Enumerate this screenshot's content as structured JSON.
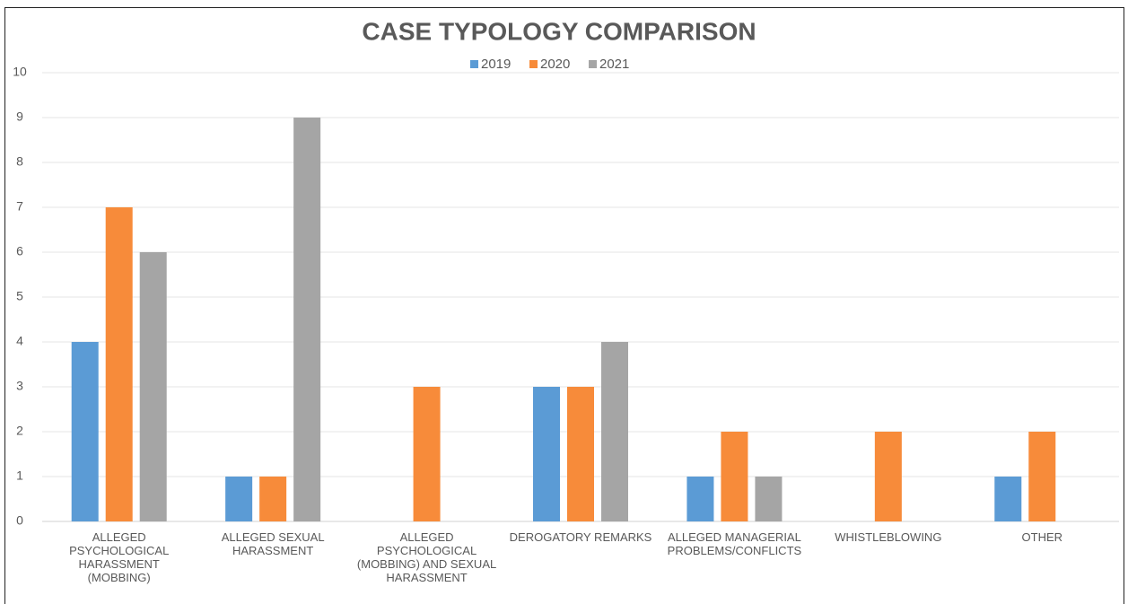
{
  "chart_data": {
    "type": "bar",
    "title": "CASE TYPOLOGY COMPARISON",
    "categories": [
      "ALLEGED PSYCHOLOGICAL HARASSMENT (MOBBING)",
      "ALLEGED SEXUAL HARASSMENT",
      "ALLEGED PSYCHOLOGICAL (MOBBING) AND SEXUAL HARASSMENT",
      "DEROGATORY REMARKS",
      "ALLEGED MANAGERIAL PROBLEMS/CONFLICTS",
      "WHISTLEBLOWING",
      "OTHER"
    ],
    "series": [
      {
        "name": "2019",
        "color": "#5b9bd5",
        "values": [
          4,
          1,
          0,
          3,
          1,
          0,
          1
        ]
      },
      {
        "name": "2020",
        "color": "#f78b3a",
        "values": [
          7,
          1,
          3,
          3,
          2,
          2,
          2
        ]
      },
      {
        "name": "2021",
        "color": "#a5a5a5",
        "values": [
          6,
          9,
          0,
          4,
          1,
          0,
          0
        ]
      }
    ],
    "ylim": [
      0,
      10
    ],
    "yticks": [
      0,
      1,
      2,
      3,
      4,
      5,
      6,
      7,
      8,
      9,
      10
    ],
    "grid": true,
    "legend": "top"
  }
}
